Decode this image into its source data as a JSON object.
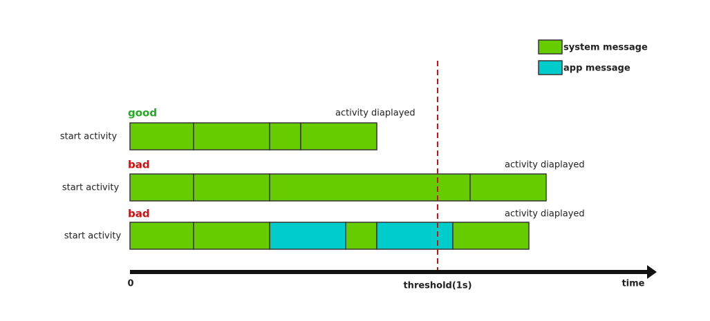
{
  "legend": [
    {
      "label": "system message"
    },
    {
      "label": "app message"
    }
  ],
  "rows": [
    {
      "status": "good",
      "label": "start activity",
      "annotation": "activity diaplayed"
    },
    {
      "status": "bad",
      "label": "start activity",
      "annotation": "activity diaplayed"
    },
    {
      "status": "bad",
      "label": "start activity",
      "annotation": "activity diaplayed"
    }
  ],
  "axis": {
    "origin": "0",
    "threshold": "threshold(1s)",
    "end": "time"
  }
}
